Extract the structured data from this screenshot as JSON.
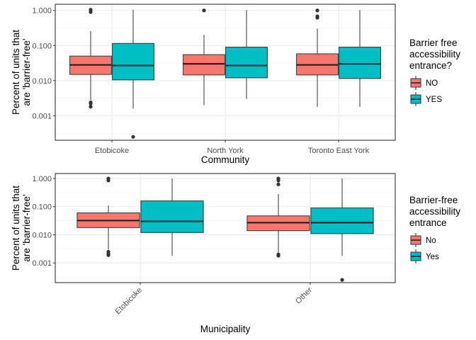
{
  "chart_data": [
    {
      "type": "boxplot",
      "y_scale": "log10",
      "ylim": [
        0.0002,
        1.5
      ],
      "yticks": [
        {
          "value": 1,
          "label": "1.000"
        },
        {
          "value": 0.1,
          "label": "0.100"
        },
        {
          "value": 0.01,
          "label": "0.010"
        },
        {
          "value": 0.001,
          "label": "0.001"
        }
      ],
      "ylabel_lines": [
        "Percent of units that",
        "are 'barrier-free'"
      ],
      "xlabel": "Community",
      "x_tick_rotation": 0,
      "grid": true,
      "legend": {
        "position": "right",
        "title_lines": [
          "Barrier free",
          "accessibility",
          "entrance?"
        ],
        "entries": [
          {
            "label": "NO",
            "color": "#f8766d"
          },
          {
            "label": "YES",
            "color": "#00bfc4"
          }
        ]
      },
      "categories": [
        "Etobicoke",
        "North York",
        "Toronto East York"
      ],
      "groups": [
        {
          "category": "Etobicoke",
          "series": "NO",
          "color": "#f8766d",
          "q1": 0.015,
          "median": 0.028,
          "q3": 0.05,
          "whisker_low": 0.0028,
          "whisker_high": 0.26,
          "outliers": [
            1.05,
            0.9,
            0.0024,
            0.0022,
            0.0018
          ]
        },
        {
          "category": "Etobicoke",
          "series": "YES",
          "color": "#00bfc4",
          "q1": 0.0105,
          "median": 0.027,
          "q3": 0.115,
          "whisker_low": 0.0016,
          "whisker_high": 1.05,
          "outliers": [
            0.00025
          ]
        },
        {
          "category": "North York",
          "series": "NO",
          "color": "#f8766d",
          "q1": 0.0145,
          "median": 0.03,
          "q3": 0.055,
          "whisker_low": 0.002,
          "whisker_high": 0.2,
          "outliers": [
            1.0
          ]
        },
        {
          "category": "North York",
          "series": "YES",
          "color": "#00bfc4",
          "q1": 0.012,
          "median": 0.027,
          "q3": 0.09,
          "whisker_low": 0.003,
          "whisker_high": 1.02,
          "outliers": []
        },
        {
          "category": "Toronto East York",
          "series": "NO",
          "color": "#f8766d",
          "q1": 0.0145,
          "median": 0.028,
          "q3": 0.058,
          "whisker_low": 0.0018,
          "whisker_high": 0.3,
          "outliers": [
            1.0,
            0.68,
            0.62
          ]
        },
        {
          "category": "Toronto East York",
          "series": "YES",
          "color": "#00bfc4",
          "q1": 0.0115,
          "median": 0.03,
          "q3": 0.09,
          "whisker_low": 0.0018,
          "whisker_high": 1.02,
          "outliers": []
        }
      ]
    },
    {
      "type": "boxplot",
      "y_scale": "log10",
      "ylim": [
        0.0002,
        1.5
      ],
      "yticks": [
        {
          "value": 1,
          "label": "1.000"
        },
        {
          "value": 0.1,
          "label": "0.100"
        },
        {
          "value": 0.01,
          "label": "0.010"
        },
        {
          "value": 0.001,
          "label": "0.001"
        }
      ],
      "ylabel_lines": [
        "Percent of units that",
        "are 'barrier-free'"
      ],
      "xlabel": "Municipality",
      "x_tick_rotation": -45,
      "grid": true,
      "legend": {
        "position": "right",
        "title_lines": [
          "Barrier-free",
          "accessibility",
          "entrance"
        ],
        "entries": [
          {
            "label": "No",
            "color": "#f8766d"
          },
          {
            "label": "Yes",
            "color": "#00bfc4"
          }
        ]
      },
      "categories": [
        "Etobicoke",
        "Other"
      ],
      "groups": [
        {
          "category": "Etobicoke",
          "series": "No",
          "color": "#f8766d",
          "q1": 0.018,
          "median": 0.032,
          "q3": 0.06,
          "whisker_low": 0.003,
          "whisker_high": 0.11,
          "outliers": [
            1.0,
            0.85,
            0.0025,
            0.0021,
            0.0019
          ]
        },
        {
          "category": "Etobicoke",
          "series": "Yes",
          "color": "#00bfc4",
          "q1": 0.012,
          "median": 0.03,
          "q3": 0.16,
          "whisker_low": 0.0018,
          "whisker_high": 1.0,
          "outliers": []
        },
        {
          "category": "Other",
          "series": "No",
          "color": "#f8766d",
          "q1": 0.014,
          "median": 0.027,
          "q3": 0.047,
          "whisker_low": 0.0023,
          "whisker_high": 0.28,
          "outliers": [
            1.0,
            0.85,
            0.62,
            0.002,
            0.0018
          ]
        },
        {
          "category": "Other",
          "series": "Yes",
          "color": "#00bfc4",
          "q1": 0.011,
          "median": 0.027,
          "q3": 0.09,
          "whisker_low": 0.0018,
          "whisker_high": 1.0,
          "outliers": [
            0.00025
          ]
        }
      ]
    }
  ]
}
